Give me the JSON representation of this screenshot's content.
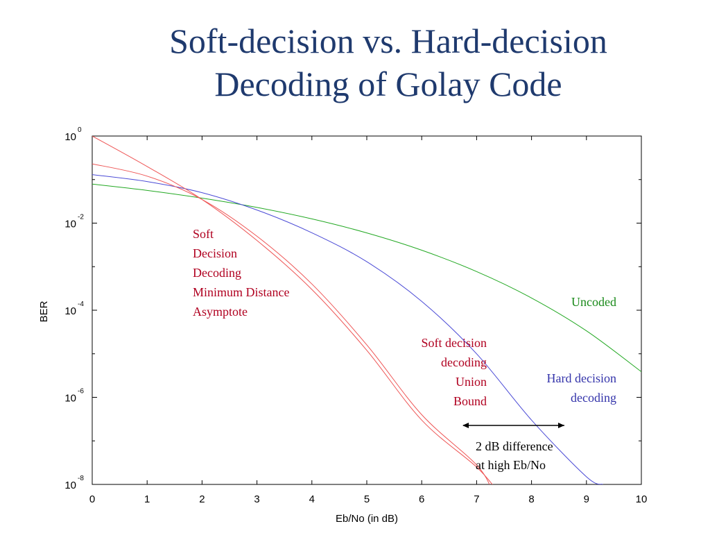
{
  "title_line1": "Soft-decision vs. Hard-decision",
  "title_line2": "Decoding of Golay Code",
  "colors": {
    "title": "#1f3a6e",
    "uncoded": "#22a822",
    "hard": "#4a4ad6",
    "soft": "#ee5555",
    "soft_text": "#b00020",
    "uncoded_text": "#1a8a1a",
    "hard_text": "#3333aa"
  },
  "annotations": {
    "min_distance": [
      "Soft",
      "Decision",
      "Decoding",
      "Minimum Distance",
      "Asymptote"
    ],
    "union_bound": [
      "Soft decision",
      "decoding",
      "Union",
      "Bound"
    ],
    "uncoded": "Uncoded",
    "hard": [
      "Hard decision",
      "decoding"
    ],
    "difference": [
      "2 dB difference",
      "at high Eb/No"
    ]
  },
  "chart_data": {
    "type": "line",
    "xlabel": "Eb/No (in dB)",
    "ylabel": "BER",
    "xlim": [
      0,
      10
    ],
    "ylim_exp": [
      -8,
      0
    ],
    "y_scale": "log",
    "x_ticks": [
      "0",
      "1",
      "2",
      "3",
      "4",
      "5",
      "6",
      "7",
      "8",
      "9",
      "10"
    ],
    "y_ticks": [
      {
        "base": "10",
        "exp": "0",
        "value": 1
      },
      {
        "base": "10",
        "exp": "-2",
        "value": 0.01
      },
      {
        "base": "10",
        "exp": "-4",
        "value": 0.0001
      },
      {
        "base": "10",
        "exp": "-6",
        "value": 1e-06
      },
      {
        "base": "10",
        "exp": "-8",
        "value": 1e-08
      }
    ],
    "grid": false,
    "series": [
      {
        "name": "Uncoded",
        "color_key": "uncoded",
        "x": [
          0,
          1,
          2,
          3,
          4,
          5,
          6,
          7,
          8,
          9,
          10
        ],
        "y": [
          0.0786,
          0.0563,
          0.0375,
          0.0229,
          0.0125,
          0.00596,
          0.00239,
          0.000773,
          0.000191,
          3.36e-05,
          3.87e-06
        ]
      },
      {
        "name": "Hard decision decoding",
        "color_key": "hard",
        "x": [
          0,
          1,
          2,
          3,
          4,
          5,
          6,
          7,
          8,
          9,
          9.3
        ],
        "y": [
          0.13,
          0.09,
          0.05,
          0.02,
          0.006,
          0.0013,
          0.00016,
          1e-05,
          3e-07,
          1.5e-08,
          1e-08
        ]
      },
      {
        "name": "Soft decision decoding Union Bound",
        "color_key": "soft",
        "x": [
          0,
          1,
          2,
          3,
          4,
          5,
          6,
          7,
          7.4
        ],
        "y": [
          1,
          0.2,
          0.035,
          0.004,
          0.0003,
          1.2e-05,
          3e-07,
          2.5e-08,
          6.5e-09
        ]
      },
      {
        "name": "Soft Decision Decoding Minimum Distance Asymptote",
        "color_key": "soft",
        "x": [
          0,
          1,
          2,
          3,
          4,
          5,
          6,
          7,
          7.3
        ],
        "y": [
          0.23,
          0.12,
          0.035,
          0.005,
          0.0004,
          1.6e-05,
          4e-07,
          2.8e-08,
          6.5e-09
        ]
      }
    ]
  }
}
